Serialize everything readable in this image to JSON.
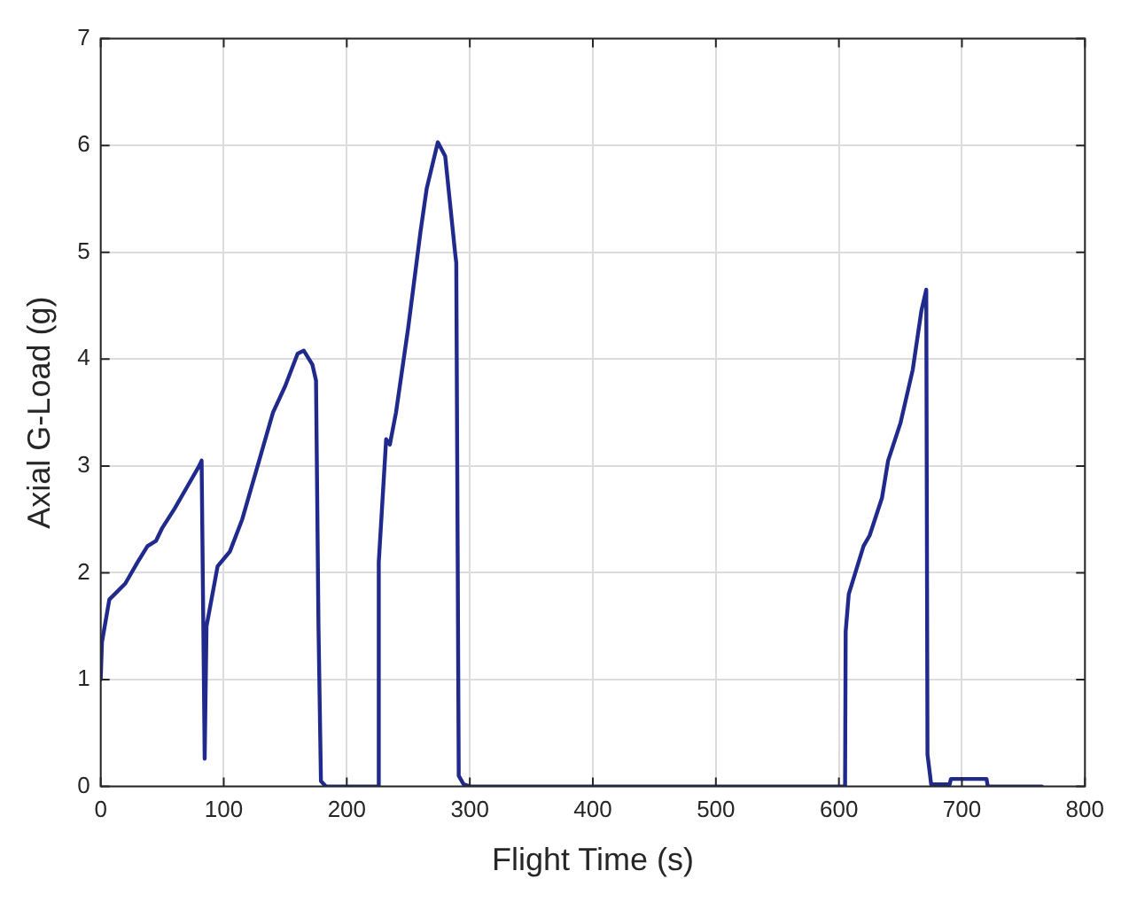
{
  "chart_data": {
    "type": "line",
    "xlabel": "Flight Time (s)",
    "ylabel": "Axial G-Load (g)",
    "x": [
      0,
      1,
      7,
      20,
      30,
      38,
      45,
      50,
      60,
      70,
      80,
      82,
      84.5,
      86,
      95,
      105,
      115,
      130,
      140,
      150,
      160,
      165,
      172,
      175,
      177,
      179,
      183,
      225,
      226,
      232,
      235,
      240,
      250,
      260,
      265,
      274,
      280,
      288,
      289,
      291,
      295,
      300,
      605,
      605.5,
      608,
      620,
      625,
      635,
      640,
      650,
      660,
      667,
      670,
      671,
      672,
      675,
      690,
      691,
      720,
      721,
      765
    ],
    "series": [
      {
        "color": "#1f2a8c",
        "values": [
          1.0,
          1.35,
          1.75,
          1.9,
          2.1,
          2.25,
          2.3,
          2.42,
          2.6,
          2.8,
          3.0,
          3.05,
          0.26,
          1.5,
          2.06,
          2.2,
          2.5,
          3.1,
          3.5,
          3.75,
          4.05,
          4.08,
          3.95,
          3.8,
          1.5,
          0.05,
          0,
          0,
          2.1,
          3.25,
          3.2,
          3.5,
          4.3,
          5.2,
          5.6,
          6.03,
          5.9,
          5.0,
          4.9,
          0.1,
          0.02,
          0,
          0,
          1.45,
          1.8,
          2.25,
          2.35,
          2.7,
          3.05,
          3.4,
          3.9,
          4.45,
          4.6,
          4.65,
          0.3,
          0.02,
          0.02,
          0.07,
          0.07,
          0,
          0
        ]
      }
    ],
    "xlim": [
      0,
      800
    ],
    "xticks": [
      0,
      100,
      200,
      300,
      400,
      500,
      600,
      700,
      800
    ],
    "ylim": [
      0,
      7
    ],
    "yticks": [
      0,
      1,
      2,
      3,
      4,
      5,
      6,
      7
    ],
    "grid": true,
    "legend": false,
    "marker": "none",
    "line_style": "solid"
  }
}
